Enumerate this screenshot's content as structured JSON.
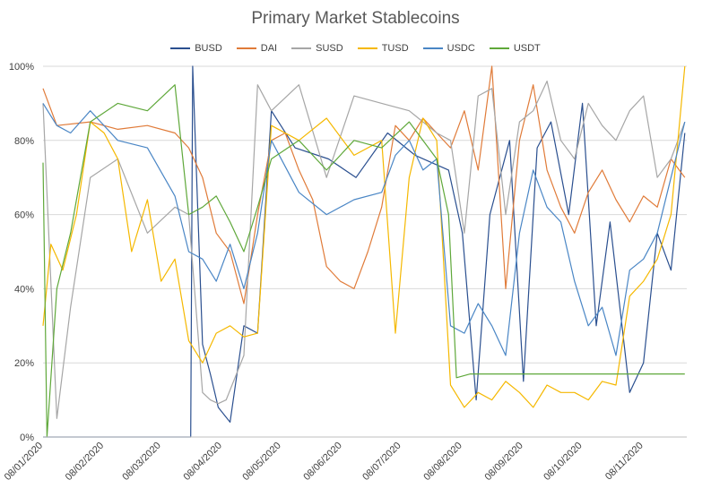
{
  "chart_data": {
    "type": "line",
    "title": "Primary Market Stablecoins",
    "xlabel": "",
    "ylabel": "",
    "ylim": [
      0,
      100
    ],
    "y_ticks": [
      "0%",
      "20%",
      "40%",
      "60%",
      "80%",
      "100%"
    ],
    "x_ticks": [
      "08/01/2020",
      "08/02/2020",
      "08/03/2020",
      "08/04/2020",
      "08/05/2020",
      "08/06/2020",
      "08/07/2020",
      "08/08/2020",
      "08/09/2020",
      "08/10/2020",
      "08/11/2020"
    ],
    "x_range": [
      "08/01/2020",
      "30/11/2020"
    ],
    "grid": "horizontal",
    "legend": "top",
    "series": [
      {
        "name": "BUSD",
        "color": "#2a4f8f",
        "x": [
          "08/01/2020",
          "09/01/2020",
          "01/02/2020",
          "01/03/2020",
          "23/03/2020",
          "24/03/2020",
          "29/03/2020",
          "02/04/2020",
          "06/04/2020",
          "12/04/2020",
          "19/04/2020",
          "26/04/2020",
          "03/05/2020",
          "15/05/2020",
          "01/06/2020",
          "15/06/2020",
          "01/07/2020",
          "15/07/2020",
          "01/08/2020",
          "08/08/2020",
          "15/08/2020",
          "22/08/2020",
          "01/09/2020",
          "08/09/2020",
          "15/09/2020",
          "22/09/2020",
          "01/10/2020",
          "08/10/2020",
          "15/10/2020",
          "22/10/2020",
          "01/11/2020",
          "08/11/2020",
          "15/11/2020",
          "22/11/2020",
          "29/11/2020"
        ],
        "y": [
          0,
          0,
          0,
          0,
          0,
          100,
          25,
          17,
          8,
          4,
          30,
          28,
          88,
          78,
          75,
          70,
          82,
          76,
          72,
          55,
          10,
          60,
          80,
          15,
          78,
          85,
          60,
          90,
          30,
          58,
          12,
          20,
          55,
          45,
          82
        ]
      },
      {
        "name": "DAI",
        "color": "#e07b39",
        "x": [
          "08/01/2020",
          "15/01/2020",
          "01/02/2020",
          "15/02/2020",
          "01/03/2020",
          "15/03/2020",
          "22/03/2020",
          "29/03/2020",
          "05/04/2020",
          "12/04/2020",
          "19/04/2020",
          "26/04/2020",
          "03/05/2020",
          "10/05/2020",
          "17/05/2020",
          "24/05/2020",
          "31/05/2020",
          "07/06/2020",
          "14/06/2020",
          "21/06/2020",
          "28/06/2020",
          "05/07/2020",
          "12/07/2020",
          "19/07/2020",
          "26/07/2020",
          "02/08/2020",
          "09/08/2020",
          "16/08/2020",
          "23/08/2020",
          "30/08/2020",
          "06/09/2020",
          "13/09/2020",
          "20/09/2020",
          "27/09/2020",
          "04/10/2020",
          "11/10/2020",
          "18/10/2020",
          "25/10/2020",
          "01/11/2020",
          "08/11/2020",
          "15/11/2020",
          "22/11/2020",
          "29/11/2020"
        ],
        "y": [
          94,
          84,
          85,
          83,
          84,
          82,
          78,
          70,
          55,
          50,
          36,
          60,
          80,
          82,
          72,
          64,
          46,
          42,
          40,
          50,
          62,
          84,
          80,
          86,
          82,
          78,
          88,
          72,
          100,
          40,
          80,
          95,
          72,
          62,
          55,
          66,
          72,
          64,
          58,
          65,
          62,
          75,
          70
        ]
      },
      {
        "name": "SUSD",
        "color": "#a6a6a6",
        "x": [
          "08/01/2020",
          "15/01/2020",
          "22/01/2020",
          "01/02/2020",
          "15/02/2020",
          "01/03/2020",
          "15/03/2020",
          "22/03/2020",
          "29/03/2020",
          "02/04/2020",
          "06/04/2020",
          "10/04/2020",
          "19/04/2020",
          "26/04/2020",
          "03/05/2020",
          "17/05/2020",
          "31/05/2020",
          "14/06/2020",
          "28/06/2020",
          "12/07/2020",
          "26/07/2020",
          "02/08/2020",
          "09/08/2020",
          "16/08/2020",
          "23/08/2020",
          "30/08/2020",
          "06/09/2020",
          "13/09/2020",
          "20/09/2020",
          "27/09/2020",
          "04/10/2020",
          "11/10/2020",
          "18/10/2020",
          "25/10/2020",
          "01/11/2020",
          "08/11/2020",
          "15/11/2020",
          "22/11/2020",
          "29/11/2020"
        ],
        "y": [
          90,
          5,
          35,
          70,
          75,
          55,
          62,
          60,
          12,
          10,
          9,
          10,
          22,
          95,
          88,
          95,
          70,
          92,
          90,
          88,
          82,
          80,
          55,
          92,
          94,
          60,
          85,
          88,
          96,
          80,
          75,
          90,
          84,
          80,
          88,
          92,
          70,
          75,
          85
        ]
      },
      {
        "name": "TUSD",
        "color": "#f5b800",
        "x": [
          "08/01/2020",
          "12/01/2020",
          "18/01/2020",
          "25/01/2020",
          "01/02/2020",
          "08/02/2020",
          "15/02/2020",
          "22/02/2020",
          "01/03/2020",
          "08/03/2020",
          "15/03/2020",
          "22/03/2020",
          "29/03/2020",
          "05/04/2020",
          "12/04/2020",
          "19/04/2020",
          "26/04/2020",
          "03/05/2020",
          "17/05/2020",
          "31/05/2020",
          "14/06/2020",
          "28/06/2020",
          "05/07/2020",
          "12/07/2020",
          "19/07/2020",
          "26/07/2020",
          "02/08/2020",
          "09/08/2020",
          "16/08/2020",
          "23/08/2020",
          "30/08/2020",
          "06/09/2020",
          "13/09/2020",
          "20/09/2020",
          "27/09/2020",
          "04/10/2020",
          "11/10/2020",
          "18/10/2020",
          "25/10/2020",
          "01/11/2020",
          "08/11/2020",
          "15/11/2020",
          "22/11/2020",
          "29/11/2020"
        ],
        "y": [
          30,
          52,
          45,
          60,
          85,
          82,
          75,
          50,
          64,
          42,
          48,
          26,
          20,
          28,
          30,
          27,
          28,
          84,
          80,
          86,
          76,
          80,
          28,
          70,
          86,
          80,
          14,
          8,
          12,
          10,
          15,
          12,
          8,
          14,
          12,
          12,
          10,
          15,
          14,
          38,
          42,
          48,
          60,
          100
        ]
      },
      {
        "name": "USDC",
        "color": "#4a86c5",
        "x": [
          "08/01/2020",
          "15/01/2020",
          "22/01/2020",
          "01/02/2020",
          "15/02/2020",
          "01/03/2020",
          "15/03/2020",
          "22/03/2020",
          "29/03/2020",
          "05/04/2020",
          "12/04/2020",
          "19/04/2020",
          "26/04/2020",
          "03/05/2020",
          "17/05/2020",
          "31/05/2020",
          "14/06/2020",
          "28/06/2020",
          "05/07/2020",
          "12/07/2020",
          "19/07/2020",
          "26/07/2020",
          "02/08/2020",
          "09/08/2020",
          "16/08/2020",
          "23/08/2020",
          "30/08/2020",
          "06/09/2020",
          "13/09/2020",
          "20/09/2020",
          "27/09/2020",
          "04/10/2020",
          "11/10/2020",
          "18/10/2020",
          "25/10/2020",
          "01/11/2020",
          "08/11/2020",
          "15/11/2020",
          "22/11/2020",
          "29/11/2020"
        ],
        "y": [
          90,
          84,
          82,
          88,
          80,
          78,
          65,
          50,
          48,
          42,
          52,
          40,
          55,
          80,
          66,
          60,
          64,
          66,
          76,
          80,
          72,
          75,
          30,
          28,
          36,
          30,
          22,
          55,
          72,
          62,
          58,
          42,
          30,
          35,
          22,
          45,
          48,
          55,
          70,
          85
        ]
      },
      {
        "name": "USDT",
        "color": "#5fa83a",
        "x": [
          "08/01/2020",
          "10/01/2020",
          "15/01/2020",
          "22/01/2020",
          "01/02/2020",
          "15/02/2020",
          "01/03/2020",
          "15/03/2020",
          "22/03/2020",
          "29/03/2020",
          "05/04/2020",
          "12/04/2020",
          "19/04/2020",
          "26/04/2020",
          "03/05/2020",
          "17/05/2020",
          "31/05/2020",
          "14/06/2020",
          "28/06/2020",
          "12/07/2020",
          "26/07/2020",
          "01/08/2020",
          "05/08/2020",
          "12/08/2020",
          "01/09/2020",
          "01/10/2020",
          "01/11/2020",
          "15/11/2020",
          "29/11/2020"
        ],
        "y": [
          74,
          0,
          40,
          55,
          85,
          90,
          88,
          95,
          60,
          62,
          65,
          58,
          50,
          62,
          75,
          80,
          72,
          80,
          78,
          85,
          75,
          60,
          16,
          17,
          17,
          17,
          17,
          17,
          17
        ]
      }
    ]
  }
}
